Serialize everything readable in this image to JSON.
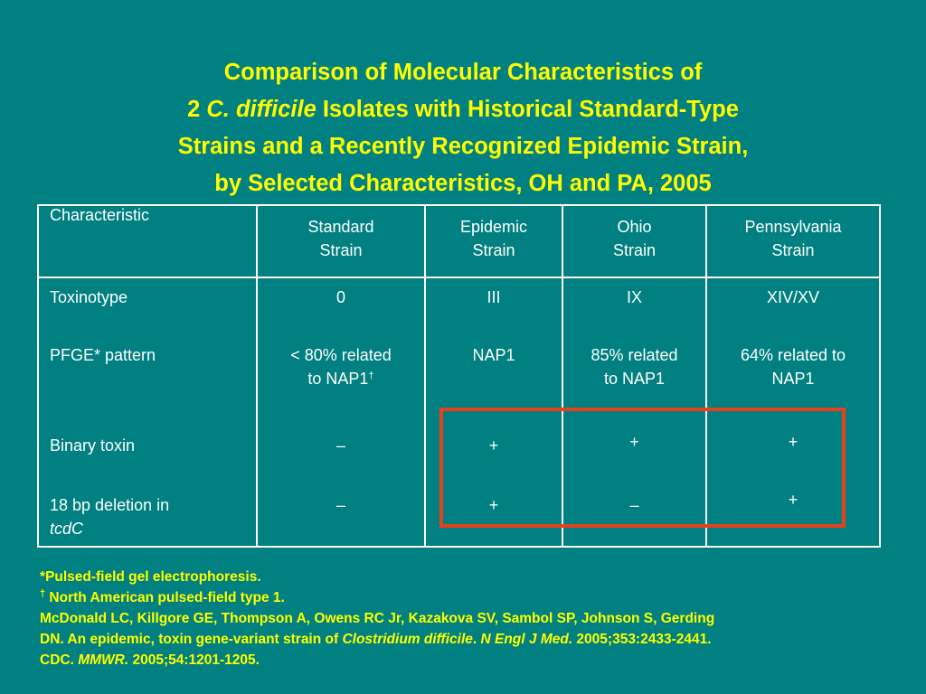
{
  "title": {
    "line1": "Comparison of Molecular Characteristics of",
    "line2_pre": "2 ",
    "line2_italic": "C. difficile",
    "line2_post": " Isolates with Historical Standard-Type",
    "line3": "Strains and a Recently Recognized Epidemic Strain,",
    "line4": "by Selected Characteristics, OH and PA, 2005"
  },
  "table": {
    "headers": {
      "characteristic": "Characteristic",
      "standard": [
        "Standard",
        "Strain"
      ],
      "epidemic": [
        "Epidemic",
        "Strain"
      ],
      "ohio": [
        "Ohio",
        "Strain"
      ],
      "pennsylvania": [
        "Pennsylvania",
        "Strain"
      ]
    },
    "rows": {
      "toxinotype": {
        "label": "Toxinotype",
        "standard": "0",
        "epidemic": "III",
        "ohio": "IX",
        "pennsylvania": "XIV/XV"
      },
      "pfge": {
        "label": "PFGE* pattern",
        "standard_l1": "< 80% related",
        "standard_l2": "to NAP1",
        "standard_sup": "†",
        "epidemic": "NAP1",
        "ohio_l1": "85% related",
        "ohio_l2": "to NAP1",
        "pennsylvania_l1": "64% related to",
        "pennsylvania_l2": "NAP1"
      },
      "binary_toxin": {
        "label": "Binary toxin",
        "standard": "–",
        "epidemic": "+",
        "ohio": "+",
        "pennsylvania": "+"
      },
      "deletion": {
        "label_l1": "18 bp deletion in",
        "label_l2": "tcdC",
        "standard": "–",
        "epidemic": "+",
        "ohio": "–",
        "pennsylvania": "+"
      }
    }
  },
  "highlight_color": "#e8401c",
  "colors": {
    "background": "#008080",
    "title": "#ffff00",
    "table_text": "#ffffff"
  },
  "footnotes": {
    "pfge": "*Pulsed-field gel electrophoresis.",
    "dagger_mark": "†",
    "dagger": " North American pulsed-field type 1.",
    "ref1": "McDonald LC, Killgore GE, Thompson A, Owens RC Jr, Kazakova SV, Sambol SP, Johnson S, Gerding",
    "ref2_pre": "DN. An epidemic, toxin gene-variant strain of ",
    "ref2_italic1": "Clostridium difficile",
    "ref2_mid": ". ",
    "ref2_italic2": "N Engl J Med.",
    "ref2_post": " 2005;353:2433-2441.",
    "ref3_pre": "CDC. ",
    "ref3_italic": "MMWR.",
    "ref3_post": " 2005;54:1201-1205."
  }
}
